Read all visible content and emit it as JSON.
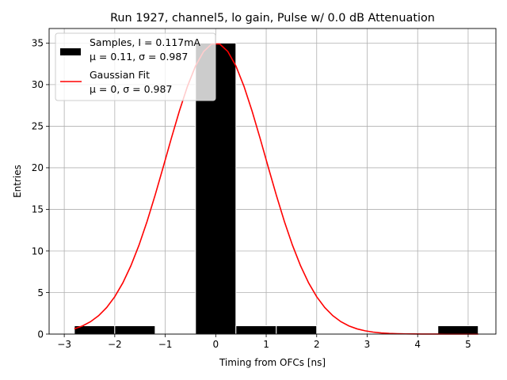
{
  "chart_data": {
    "type": "bar",
    "title": "Run 1927, channel5, lo gain, Pulse w/ 0.0 dB Attenuation",
    "xlabel": "Timing from OFCs [ns]",
    "ylabel": "Entries",
    "xlim": [
      -3.3,
      5.55
    ],
    "ylim": [
      0,
      36.75
    ],
    "xticks": [
      -3,
      -2,
      -1,
      0,
      1,
      2,
      3,
      4,
      5
    ],
    "xtick_labels": [
      "−3",
      "−2",
      "−1",
      "0",
      "1",
      "2",
      "3",
      "4",
      "5"
    ],
    "yticks": [
      0,
      5,
      10,
      15,
      20,
      25,
      30,
      35
    ],
    "ytick_labels": [
      "0",
      "5",
      "10",
      "15",
      "20",
      "25",
      "30",
      "35"
    ],
    "grid": true,
    "legend_position": "top-left",
    "histogram": {
      "name": "Samples",
      "legend_line1": "Samples, I = 0.117mA",
      "legend_line2": "μ = 0.11, σ = 0.987",
      "color": "#000000",
      "bins": [
        {
          "x0": -2.8,
          "x1": -2.0,
          "count": 1
        },
        {
          "x0": -2.0,
          "x1": -1.2,
          "count": 1
        },
        {
          "x0": -0.4,
          "x1": 0.4,
          "count": 35
        },
        {
          "x0": 0.4,
          "x1": 1.2,
          "count": 1
        },
        {
          "x0": 1.2,
          "x1": 2.0,
          "count": 1
        },
        {
          "x0": 4.4,
          "x1": 5.2,
          "count": 1
        }
      ]
    },
    "fit": {
      "name": "Gaussian Fit",
      "legend_line1": "Gaussian Fit",
      "legend_line2": "μ = 0, σ = 0.987",
      "color": "#ff0000",
      "mu": 0,
      "sigma": 0.987,
      "amplitude": 35,
      "x_range": [
        -2.8,
        5.2
      ],
      "n_points": 51
    }
  }
}
